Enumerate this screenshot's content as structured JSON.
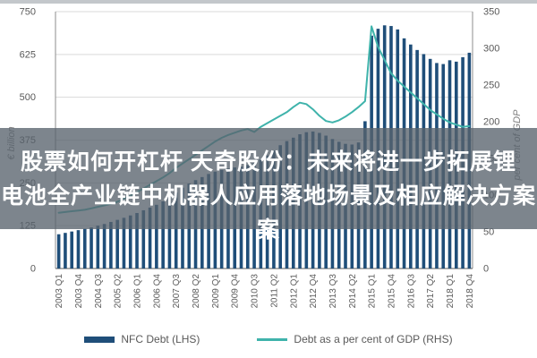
{
  "overlay": {
    "line1": "股票如何开杠杆 天奇股份：未来将进一步拓展锂",
    "line2": "电池全产业链中机器人应用落地场景及相应解决方案",
    "line3": "案"
  },
  "chart_data": {
    "type": "bar",
    "title": "",
    "categories": [
      "2003 Q1",
      "2003 Q2",
      "2003 Q3",
      "2003 Q4",
      "2004 Q1",
      "2004 Q2",
      "2004 Q3",
      "2004 Q4",
      "2005 Q1",
      "2005 Q2",
      "2005 Q3",
      "2005 Q4",
      "2006 Q1",
      "2006 Q2",
      "2006 Q3",
      "2006 Q4",
      "2007 Q1",
      "2007 Q2",
      "2007 Q3",
      "2007 Q4",
      "2008 Q1",
      "2008 Q2",
      "2008 Q3",
      "2008 Q4",
      "2009 Q1",
      "2009 Q2",
      "2009 Q3",
      "2009 Q4",
      "2010 Q1",
      "2010 Q2",
      "2010 Q3",
      "2010 Q4",
      "2011 Q1",
      "2011 Q2",
      "2011 Q3",
      "2011 Q4",
      "2012 Q1",
      "2012 Q2",
      "2012 Q3",
      "2012 Q4",
      "2013 Q1",
      "2013 Q2",
      "2013 Q3",
      "2013 Q4",
      "2014 Q1",
      "2014 Q2",
      "2014 Q3",
      "2014 Q4",
      "2015 Q1",
      "2015 Q2",
      "2015 Q3",
      "2015 Q4",
      "2016 Q1",
      "2016 Q2",
      "2016 Q3",
      "2016 Q4",
      "2017 Q1",
      "2017 Q2",
      "2017 Q3",
      "2017 Q4",
      "2018 Q1",
      "2018 Q2",
      "2018 Q3",
      "2018 Q4"
    ],
    "x_tick_every": 3,
    "x_tick_labels_shown": [
      "2003 Q1",
      "2003 Q4",
      "2004 Q3",
      "2005 Q2",
      "2006 Q1",
      "2006 Q4",
      "2007 Q3",
      "2008 Q2",
      "2009 Q1",
      "2009 Q4",
      "2010 Q3",
      "2011 Q2",
      "2012 Q1",
      "2012 Q4",
      "2013 Q3",
      "2014 Q2",
      "2015 Q1",
      "2015 Q4",
      "2016 Q3",
      "2017 Q2",
      "2018 Q1",
      "2018 Q4"
    ],
    "series": [
      {
        "name": "NFC Debt (LHS)",
        "type": "bar",
        "axis": "left",
        "color": "#1F4E79",
        "values": [
          100,
          104,
          108,
          112,
          116,
          120,
          125,
          130,
          136,
          142,
          148,
          155,
          162,
          170,
          178,
          186,
          196,
          208,
          222,
          236,
          248,
          258,
          267,
          276,
          283,
          288,
          292,
          295,
          298,
          302,
          308,
          318,
          330,
          345,
          360,
          372,
          382,
          392,
          398,
          400,
          396,
          388,
          378,
          370,
          364,
          362,
          368,
          430,
          680,
          700,
          710,
          708,
          698,
          672,
          654,
          638,
          626,
          612,
          600,
          597,
          608,
          604,
          617,
          630
        ]
      },
      {
        "name": "Debt as a per cent of GDP (RHS)",
        "type": "line",
        "axis": "right",
        "color": "#3FB3AB",
        "values": [
          76,
          77,
          78,
          79,
          80,
          82,
          84,
          86,
          88,
          91,
          95,
          99,
          104,
          109,
          114,
          119,
          124,
          130,
          137,
          143,
          149,
          155,
          161,
          167,
          173,
          178,
          182,
          185,
          188,
          190,
          186,
          193,
          198,
          203,
          208,
          213,
          220,
          226,
          224,
          217,
          208,
          201,
          199,
          202,
          207,
          213,
          220,
          228,
          330,
          302,
          284,
          266,
          256,
          248,
          240,
          232,
          224,
          216,
          210,
          204,
          199,
          196,
          193,
          194
        ]
      }
    ],
    "left_axis": {
      "title": "€ billion",
      "min": 0,
      "max": 750,
      "step": 125,
      "ticks": [
        "0",
        "125",
        "250",
        "375",
        "500",
        "625",
        "750"
      ]
    },
    "right_axis": {
      "title": "per cent of GDP",
      "min": 0,
      "max": 350,
      "step": 50,
      "ticks": [
        "0",
        "50",
        "100",
        "150",
        "200",
        "250",
        "300",
        "350"
      ]
    },
    "grid": true,
    "legend_position": "bottom",
    "legend": {
      "bar_label": "NFC Debt (LHS)",
      "line_label": "Debt as a per cent of GDP (RHS)"
    },
    "colors": {
      "bar": "#1F4E79",
      "line": "#3FB3AB",
      "grid": "#D9D9D9",
      "axis": "#8c8c8c",
      "tick_text": "#595959"
    }
  }
}
